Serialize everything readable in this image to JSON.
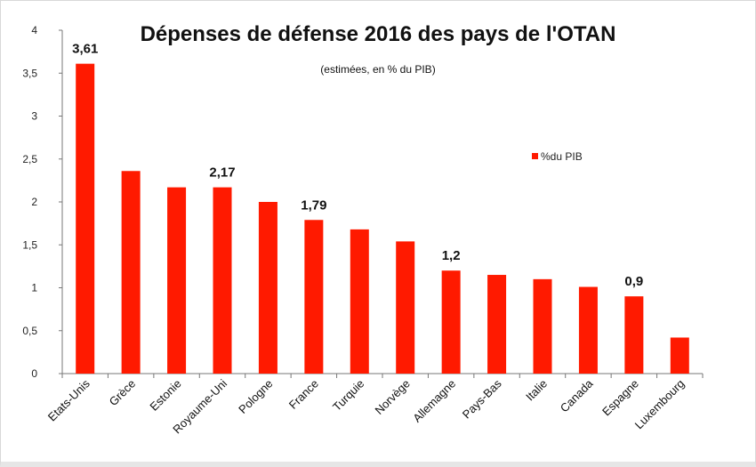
{
  "chart_data": {
    "type": "bar",
    "title": "Dépenses de défense 2016 des pays de l'OTAN",
    "subtitle": "(estimées, en % du PIB)",
    "categories": [
      "Etats-Unis",
      "Grèce",
      "Estonie",
      "Royaume-Uni",
      "Pologne",
      "France",
      "Turquie",
      "Norvège",
      "Allemagne",
      "Pays-Bas",
      "Italie",
      "Canada",
      "Espagne",
      "Luxembourg"
    ],
    "series": [
      {
        "name": "%du PIB",
        "color": "#ff1a00",
        "values": [
          3.61,
          2.36,
          2.17,
          2.17,
          2.0,
          1.79,
          1.68,
          1.54,
          1.2,
          1.15,
          1.1,
          1.01,
          0.9,
          0.42
        ]
      }
    ],
    "data_labels": [
      {
        "index": 0,
        "text": "3,61"
      },
      {
        "index": 3,
        "text": "2,17"
      },
      {
        "index": 5,
        "text": "1,79"
      },
      {
        "index": 8,
        "text": "1,2"
      },
      {
        "index": 12,
        "text": "0,9"
      }
    ],
    "yticks": [
      "0",
      "0,5",
      "1",
      "1,5",
      "2",
      "2,5",
      "3",
      "3,5",
      "4"
    ],
    "ylim": [
      0,
      4
    ],
    "grid": false,
    "legend_position": "right"
  }
}
